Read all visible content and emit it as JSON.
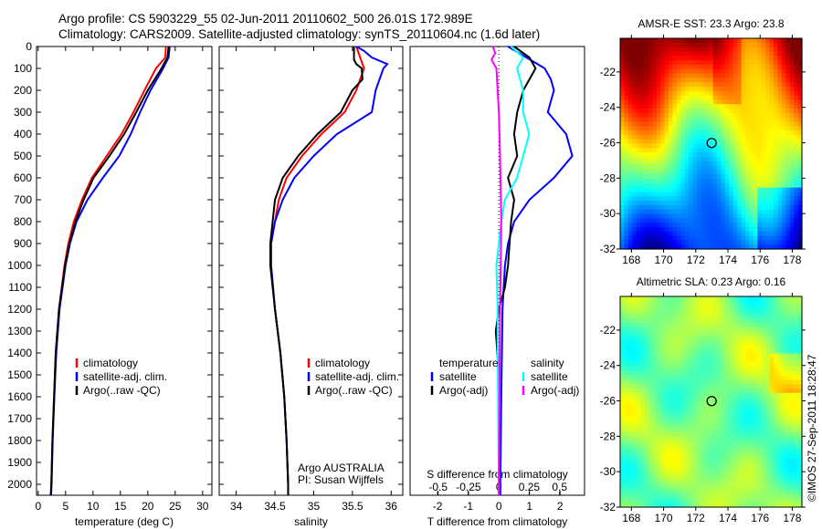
{
  "title_line1": "Argo profile: CS 5903229_55 02-Jun-2011 20110602_500 26.01S 172.989E",
  "title_line2": "Climatology: CARS2009. Satellite-adjusted climatology: synTS_20110604.nc (1.6d later)",
  "credit": "©IMOS 27-Sep-2011 18:28:47",
  "colors": {
    "climatology": "#ff0000",
    "satellite": "#0000ff",
    "argo": "#000000",
    "sal_satellite": "#00ffff",
    "sal_argo": "#ff00ff"
  },
  "chart_data": [
    {
      "type": "line",
      "name": "temperature",
      "xlabel": "temperature (deg C)",
      "ylabel": "",
      "xlim": [
        -0.3,
        31.7
      ],
      "ylim": [
        2050,
        0
      ],
      "xticks": [
        0,
        5,
        10,
        15,
        20,
        25,
        30
      ],
      "yticks": [
        0,
        100,
        200,
        300,
        400,
        500,
        600,
        700,
        800,
        900,
        1000,
        1100,
        1200,
        1300,
        1400,
        1500,
        1600,
        1700,
        1800,
        1900,
        2000
      ],
      "legend": [
        "climatology",
        "satellite-adj. clim.",
        "Argo(..raw -QC)"
      ],
      "series": [
        {
          "name": "climatology",
          "depth": [
            0,
            50,
            100,
            200,
            300,
            400,
            500,
            600,
            700,
            800,
            900,
            1000,
            1200,
            1400,
            1600,
            1800,
            2000,
            2050
          ],
          "values": [
            23.3,
            23.2,
            21.5,
            19.4,
            17.4,
            15.2,
            12.5,
            9.8,
            8.0,
            6.5,
            5.5,
            4.8,
            3.8,
            3.2,
            2.9,
            2.6,
            2.4,
            2.3
          ]
        },
        {
          "name": "satellite-adj. clim.",
          "depth": [
            0,
            50,
            100,
            200,
            300,
            400,
            500,
            600,
            700,
            800,
            900,
            1000,
            1200,
            1400,
            1600,
            1800,
            2000,
            2050
          ],
          "values": [
            24.0,
            23.8,
            22.8,
            20.5,
            18.6,
            16.9,
            14.8,
            11.8,
            9.0,
            7.0,
            5.8,
            5.0,
            3.9,
            3.3,
            2.95,
            2.65,
            2.45,
            2.35
          ]
        },
        {
          "name": "Argo(..raw -QC)",
          "depth": [
            0,
            50,
            100,
            200,
            300,
            400,
            500,
            600,
            700,
            800,
            900,
            1000,
            1200,
            1400,
            1600,
            1800,
            2000,
            2050
          ],
          "values": [
            23.8,
            23.6,
            22.5,
            20.0,
            17.9,
            15.7,
            13.0,
            10.1,
            8.3,
            6.8,
            5.7,
            4.9,
            3.8,
            3.2,
            2.9,
            2.6,
            2.4,
            2.3
          ]
        }
      ]
    },
    {
      "type": "line",
      "name": "salinity",
      "xlabel": "salinity",
      "xlim": [
        33.78,
        36.15
      ],
      "ylim": [
        2050,
        0
      ],
      "xticks": [
        34,
        34.5,
        35,
        35.5,
        36
      ],
      "xticklabels": [
        "34",
        "34.5",
        "35",
        "35.5",
        "36"
      ],
      "legend": [
        "climatology",
        "satellite-adj. clim.",
        "Argo(..raw -QC)"
      ],
      "annotation": [
        "Argo AUSTRALIA",
        "PI: Susan Wijffels"
      ],
      "series": [
        {
          "name": "climatology",
          "depth": [
            0,
            50,
            100,
            200,
            300,
            400,
            500,
            600,
            700,
            800,
            900,
            1000,
            1200,
            1400,
            1600,
            1800,
            2000,
            2050
          ],
          "values": [
            35.55,
            35.6,
            35.65,
            35.55,
            35.4,
            35.1,
            34.85,
            34.65,
            34.55,
            34.5,
            34.45,
            34.45,
            34.5,
            34.57,
            34.62,
            34.65,
            34.67,
            34.67
          ]
        },
        {
          "name": "satellite-adj. clim.",
          "depth": [
            0,
            20,
            50,
            80,
            100,
            200,
            300,
            400,
            500,
            600,
            700,
            800,
            900,
            1000,
            1200,
            1400,
            1600,
            1800,
            2000,
            2050
          ],
          "values": [
            35.55,
            35.65,
            35.75,
            35.95,
            35.9,
            35.8,
            35.75,
            35.3,
            35.0,
            34.75,
            34.6,
            34.5,
            34.45,
            34.45,
            34.5,
            34.57,
            34.62,
            34.65,
            34.67,
            34.67
          ]
        },
        {
          "name": "Argo(..raw -QC)",
          "depth": [
            0,
            60,
            80,
            100,
            150,
            200,
            300,
            400,
            500,
            600,
            700,
            800,
            900,
            1000,
            1200,
            1400,
            1600,
            1800,
            2000,
            2050
          ],
          "values": [
            35.52,
            35.52,
            35.55,
            35.62,
            35.63,
            35.5,
            35.35,
            35.05,
            34.8,
            34.6,
            34.5,
            34.47,
            34.44,
            34.44,
            34.5,
            34.57,
            34.62,
            34.65,
            34.67,
            34.67
          ]
        }
      ]
    },
    {
      "type": "line",
      "name": "differences",
      "xlabel": "T difference from climatology",
      "x2label": "S difference from climatology",
      "xlim": [
        -2.9,
        2.8
      ],
      "x2lim": [
        -0.5,
        0.5
      ],
      "xticks": [
        -2,
        -1,
        0,
        1,
        2
      ],
      "x2ticks": [
        -0.5,
        -0.25,
        0,
        0.25,
        0.5
      ],
      "x2ticklabels": [
        "-0.5",
        "-0.25",
        "0",
        "0.25",
        "0.5"
      ],
      "ylim": [
        2050,
        0
      ],
      "legend": {
        "temperature": "temperature",
        "salinity": "salinity",
        "items": [
          "satellite",
          "Argo(-adj)",
          "satellite",
          "Argo(-adj)"
        ]
      },
      "series": [
        {
          "name": "T satellite",
          "axis": "T",
          "depth": [
            0,
            50,
            100,
            150,
            200,
            300,
            400,
            500,
            600,
            700,
            800,
            900,
            1000,
            1200,
            1400,
            1600,
            2000,
            2050
          ],
          "values": [
            0.3,
            0.9,
            1.5,
            1.7,
            1.8,
            1.6,
            2.2,
            2.4,
            1.8,
            1.0,
            0.5,
            0.3,
            0.2,
            0.12,
            0.1,
            0.08,
            0.05,
            0.05
          ]
        },
        {
          "name": "T Argo(-adj)",
          "axis": "T",
          "depth": [
            0,
            50,
            100,
            150,
            200,
            300,
            400,
            500,
            600,
            700,
            800,
            900,
            1000,
            1100,
            1200,
            1300,
            1400,
            1500,
            2000,
            2050
          ],
          "values": [
            0.5,
            1.0,
            1.2,
            1.0,
            0.8,
            0.6,
            0.5,
            0.6,
            0.3,
            0.5,
            0.4,
            0.35,
            0.3,
            0.2,
            0.0,
            -0.1,
            -0.05,
            0.0,
            0.0,
            0.0
          ]
        },
        {
          "name": "S satellite",
          "axis": "S",
          "depth": [
            0,
            50,
            100,
            200,
            300,
            400,
            500,
            600,
            700,
            800,
            900,
            1000,
            1200,
            1400,
            2000,
            2050
          ],
          "values": [
            0.1,
            0.2,
            0.15,
            0.2,
            0.2,
            0.25,
            0.2,
            0.15,
            0.05,
            0.02,
            0.0,
            -0.02,
            -0.01,
            -0.01,
            0.0,
            0.0
          ]
        },
        {
          "name": "S Argo(-adj)",
          "axis": "S",
          "depth": [
            0,
            30,
            60,
            100,
            200,
            300,
            500,
            800,
            1200,
            2000,
            2050
          ],
          "values": [
            -0.05,
            -0.03,
            -0.06,
            -0.02,
            -0.01,
            0.0,
            0.01,
            0.02,
            0.01,
            0.0,
            0.0
          ]
        }
      ]
    },
    {
      "type": "heatmap",
      "name": "sst-map",
      "title": "AMSR-E SST: 23.3 Argo: 23.8",
      "xlim": [
        167.3,
        178.6
      ],
      "ylim": [
        -32,
        -20.1
      ],
      "xticks": [
        168,
        170,
        172,
        174,
        176,
        178
      ],
      "yticks": [
        -22,
        -24,
        -26,
        -28,
        -30,
        -32
      ],
      "argo_position": [
        172.989,
        -26.01
      ]
    },
    {
      "type": "heatmap",
      "name": "sla-map",
      "title": "Altimetric SLA: 0.23 Argo: 0.16",
      "xlim": [
        167.3,
        178.6
      ],
      "ylim": [
        -32,
        -20.1
      ],
      "xticks": [
        168,
        170,
        172,
        174,
        176,
        178
      ],
      "yticks": [
        -22,
        -24,
        -26,
        -28,
        -30,
        -32
      ],
      "argo_position": [
        172.989,
        -26.01
      ]
    }
  ]
}
